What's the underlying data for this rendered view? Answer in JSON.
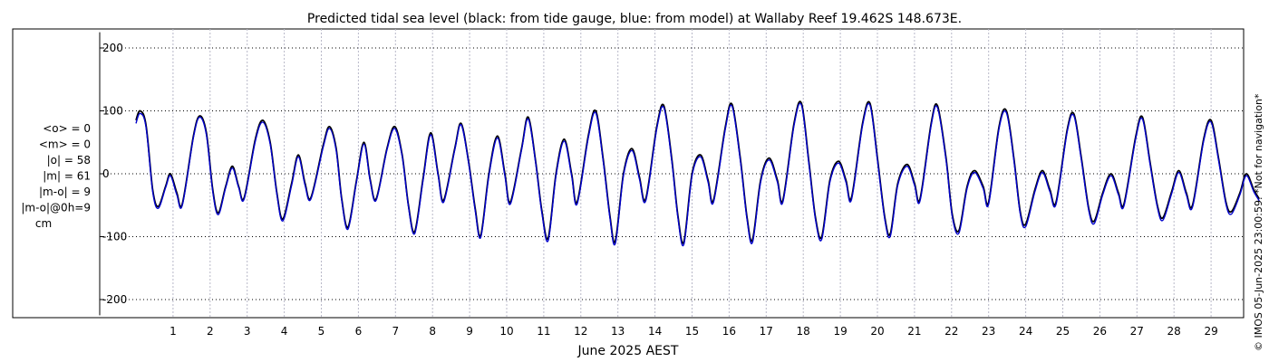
{
  "chart_data": {
    "type": "line",
    "title": "Predicted tidal sea level (black: from tide gauge, blue: from model) at Wallaby Reef 19.462S 148.673E.",
    "xlabel": "June 2025 AEST",
    "ylabel": "",
    "x_range_days": [
      0.0,
      30.3
    ],
    "ylim": [
      -225,
      225
    ],
    "x_ticks": [
      "1",
      "2",
      "3",
      "4",
      "5",
      "6",
      "7",
      "8",
      "9",
      "10",
      "11",
      "12",
      "13",
      "14",
      "15",
      "16",
      "17",
      "18",
      "19",
      "20",
      "21",
      "22",
      "23",
      "24",
      "25",
      "26",
      "27",
      "28",
      "29"
    ],
    "y_ticks": [
      {
        "value": 200,
        "label": "200"
      },
      {
        "value": 100,
        "label": "100"
      },
      {
        "value": 0,
        "label": "0"
      },
      {
        "value": -100,
        "label": "-100"
      },
      {
        "value": -200,
        "label": "-200"
      }
    ],
    "grid": true,
    "series": [
      {
        "label_in_title": "black: from tide gauge",
        "color": "#000000",
        "points": [
          [
            0.0,
            85
          ],
          [
            0.11,
            100
          ],
          [
            0.27,
            78
          ],
          [
            0.45,
            -25
          ],
          [
            0.6,
            -52
          ],
          [
            0.8,
            -20
          ],
          [
            0.93,
            0
          ],
          [
            1.1,
            -30
          ],
          [
            1.25,
            -48
          ],
          [
            1.55,
            60
          ],
          [
            1.72,
            92
          ],
          [
            1.9,
            65
          ],
          [
            2.07,
            -25
          ],
          [
            2.22,
            -62
          ],
          [
            2.42,
            -20
          ],
          [
            2.6,
            12
          ],
          [
            2.77,
            -20
          ],
          [
            2.92,
            -38
          ],
          [
            3.22,
            55
          ],
          [
            3.42,
            85
          ],
          [
            3.62,
            50
          ],
          [
            3.8,
            -30
          ],
          [
            3.96,
            -72
          ],
          [
            4.2,
            -15
          ],
          [
            4.38,
            30
          ],
          [
            4.56,
            -15
          ],
          [
            4.72,
            -38
          ],
          [
            5.05,
            45
          ],
          [
            5.22,
            75
          ],
          [
            5.4,
            40
          ],
          [
            5.55,
            -40
          ],
          [
            5.72,
            -85
          ],
          [
            5.95,
            -10
          ],
          [
            6.15,
            50
          ],
          [
            6.32,
            -10
          ],
          [
            6.48,
            -40
          ],
          [
            6.77,
            40
          ],
          [
            6.98,
            75
          ],
          [
            7.18,
            30
          ],
          [
            7.35,
            -50
          ],
          [
            7.52,
            -92
          ],
          [
            7.75,
            -5
          ],
          [
            7.95,
            65
          ],
          [
            8.15,
            0
          ],
          [
            8.3,
            -42
          ],
          [
            8.6,
            40
          ],
          [
            8.77,
            80
          ],
          [
            8.97,
            20
          ],
          [
            9.15,
            -55
          ],
          [
            9.3,
            -98
          ],
          [
            9.52,
            0
          ],
          [
            9.75,
            60
          ],
          [
            9.95,
            0
          ],
          [
            10.1,
            -45
          ],
          [
            10.4,
            40
          ],
          [
            10.58,
            90
          ],
          [
            10.78,
            20
          ],
          [
            10.95,
            -60
          ],
          [
            11.12,
            -102
          ],
          [
            11.33,
            0
          ],
          [
            11.55,
            55
          ],
          [
            11.75,
            0
          ],
          [
            11.9,
            -45
          ],
          [
            12.2,
            60
          ],
          [
            12.4,
            100
          ],
          [
            12.6,
            25
          ],
          [
            12.78,
            -65
          ],
          [
            12.93,
            -107
          ],
          [
            13.15,
            0
          ],
          [
            13.38,
            40
          ],
          [
            13.58,
            -5
          ],
          [
            13.75,
            -40
          ],
          [
            14.05,
            75
          ],
          [
            14.24,
            108
          ],
          [
            14.45,
            25
          ],
          [
            14.62,
            -68
          ],
          [
            14.78,
            -108
          ],
          [
            15.0,
            0
          ],
          [
            15.23,
            30
          ],
          [
            15.43,
            -10
          ],
          [
            15.58,
            -42
          ],
          [
            15.9,
            75
          ],
          [
            16.08,
            110
          ],
          [
            16.3,
            25
          ],
          [
            16.48,
            -68
          ],
          [
            16.63,
            -105
          ],
          [
            16.85,
            -10
          ],
          [
            17.08,
            25
          ],
          [
            17.3,
            -10
          ],
          [
            17.45,
            -42
          ],
          [
            17.75,
            80
          ],
          [
            17.95,
            112
          ],
          [
            18.15,
            20
          ],
          [
            18.33,
            -70
          ],
          [
            18.5,
            -100
          ],
          [
            18.72,
            -10
          ],
          [
            18.95,
            20
          ],
          [
            19.15,
            -10
          ],
          [
            19.3,
            -38
          ],
          [
            19.6,
            80
          ],
          [
            19.8,
            112
          ],
          [
            20.0,
            25
          ],
          [
            20.2,
            -70
          ],
          [
            20.35,
            -95
          ],
          [
            20.55,
            -15
          ],
          [
            20.8,
            15
          ],
          [
            21.0,
            -15
          ],
          [
            21.15,
            -40
          ],
          [
            21.45,
            80
          ],
          [
            21.62,
            108
          ],
          [
            21.85,
            25
          ],
          [
            22.02,
            -65
          ],
          [
            22.2,
            -90
          ],
          [
            22.42,
            -20
          ],
          [
            22.62,
            5
          ],
          [
            22.85,
            -20
          ],
          [
            23.0,
            -45
          ],
          [
            23.28,
            75
          ],
          [
            23.48,
            100
          ],
          [
            23.68,
            25
          ],
          [
            23.85,
            -60
          ],
          [
            24.0,
            -80
          ],
          [
            24.25,
            -25
          ],
          [
            24.45,
            5
          ],
          [
            24.65,
            -25
          ],
          [
            24.82,
            -45
          ],
          [
            25.12,
            70
          ],
          [
            25.3,
            95
          ],
          [
            25.5,
            25
          ],
          [
            25.7,
            -55
          ],
          [
            25.85,
            -75
          ],
          [
            26.08,
            -30
          ],
          [
            26.3,
            0
          ],
          [
            26.5,
            -30
          ],
          [
            26.65,
            -48
          ],
          [
            26.97,
            60
          ],
          [
            27.15,
            90
          ],
          [
            27.35,
            20
          ],
          [
            27.55,
            -50
          ],
          [
            27.7,
            -70
          ],
          [
            27.93,
            -30
          ],
          [
            28.13,
            5
          ],
          [
            28.33,
            -30
          ],
          [
            28.5,
            -50
          ],
          [
            28.8,
            55
          ],
          [
            29.0,
            85
          ],
          [
            29.2,
            25
          ],
          [
            29.4,
            -45
          ],
          [
            29.55,
            -60
          ],
          [
            29.78,
            -30
          ],
          [
            29.95,
            0
          ],
          [
            30.15,
            -25
          ],
          [
            30.3,
            -40
          ]
        ]
      },
      {
        "label_in_title": "blue: from model",
        "color": "#0000cc",
        "points": [
          [
            0.0,
            80
          ],
          [
            0.11,
            96
          ],
          [
            0.27,
            75
          ],
          [
            0.45,
            -28
          ],
          [
            0.6,
            -55
          ],
          [
            0.8,
            -22
          ],
          [
            0.93,
            -3
          ],
          [
            1.1,
            -33
          ],
          [
            1.25,
            -50
          ],
          [
            1.55,
            58
          ],
          [
            1.72,
            90
          ],
          [
            1.9,
            62
          ],
          [
            2.07,
            -28
          ],
          [
            2.22,
            -65
          ],
          [
            2.42,
            -22
          ],
          [
            2.6,
            9
          ],
          [
            2.77,
            -22
          ],
          [
            2.92,
            -40
          ],
          [
            3.22,
            52
          ],
          [
            3.42,
            82
          ],
          [
            3.62,
            47
          ],
          [
            3.8,
            -32
          ],
          [
            3.96,
            -75
          ],
          [
            4.2,
            -18
          ],
          [
            4.38,
            27
          ],
          [
            4.56,
            -18
          ],
          [
            4.72,
            -40
          ],
          [
            5.05,
            42
          ],
          [
            5.22,
            72
          ],
          [
            5.4,
            37
          ],
          [
            5.55,
            -42
          ],
          [
            5.72,
            -88
          ],
          [
            5.95,
            -12
          ],
          [
            6.15,
            47
          ],
          [
            6.32,
            -12
          ],
          [
            6.48,
            -42
          ],
          [
            6.77,
            38
          ],
          [
            6.98,
            72
          ],
          [
            7.18,
            28
          ],
          [
            7.35,
            -52
          ],
          [
            7.52,
            -95
          ],
          [
            7.75,
            -8
          ],
          [
            7.95,
            62
          ],
          [
            8.15,
            -2
          ],
          [
            8.3,
            -45
          ],
          [
            8.6,
            38
          ],
          [
            8.77,
            78
          ],
          [
            8.97,
            18
          ],
          [
            9.15,
            -58
          ],
          [
            9.3,
            -101
          ],
          [
            9.52,
            -3
          ],
          [
            9.75,
            57
          ],
          [
            9.95,
            -3
          ],
          [
            10.1,
            -48
          ],
          [
            10.4,
            38
          ],
          [
            10.58,
            87
          ],
          [
            10.78,
            18
          ],
          [
            10.95,
            -63
          ],
          [
            11.12,
            -106
          ],
          [
            11.33,
            -3
          ],
          [
            11.55,
            52
          ],
          [
            11.75,
            -3
          ],
          [
            11.9,
            -48
          ],
          [
            12.2,
            57
          ],
          [
            12.4,
            97
          ],
          [
            12.6,
            22
          ],
          [
            12.78,
            -68
          ],
          [
            12.93,
            -111
          ],
          [
            13.15,
            -3
          ],
          [
            13.38,
            37
          ],
          [
            13.58,
            -8
          ],
          [
            13.75,
            -43
          ],
          [
            14.05,
            72
          ],
          [
            14.24,
            105
          ],
          [
            14.45,
            22
          ],
          [
            14.62,
            -71
          ],
          [
            14.78,
            -112
          ],
          [
            15.0,
            -3
          ],
          [
            15.23,
            27
          ],
          [
            15.43,
            -13
          ],
          [
            15.58,
            -45
          ],
          [
            15.9,
            72
          ],
          [
            16.08,
            107
          ],
          [
            16.3,
            22
          ],
          [
            16.48,
            -71
          ],
          [
            16.63,
            -109
          ],
          [
            16.85,
            -13
          ],
          [
            17.08,
            22
          ],
          [
            17.3,
            -13
          ],
          [
            17.45,
            -45
          ],
          [
            17.75,
            77
          ],
          [
            17.95,
            109
          ],
          [
            18.15,
            17
          ],
          [
            18.33,
            -73
          ],
          [
            18.5,
            -104
          ],
          [
            18.72,
            -13
          ],
          [
            18.95,
            17
          ],
          [
            19.15,
            -13
          ],
          [
            19.3,
            -41
          ],
          [
            19.6,
            77
          ],
          [
            19.8,
            109
          ],
          [
            20.0,
            22
          ],
          [
            20.2,
            -73
          ],
          [
            20.35,
            -99
          ],
          [
            20.55,
            -18
          ],
          [
            20.8,
            12
          ],
          [
            21.0,
            -18
          ],
          [
            21.15,
            -43
          ],
          [
            21.45,
            77
          ],
          [
            21.62,
            105
          ],
          [
            21.85,
            22
          ],
          [
            22.02,
            -68
          ],
          [
            22.2,
            -94
          ],
          [
            22.42,
            -23
          ],
          [
            22.62,
            2
          ],
          [
            22.85,
            -23
          ],
          [
            23.0,
            -48
          ],
          [
            23.28,
            72
          ],
          [
            23.48,
            97
          ],
          [
            23.68,
            22
          ],
          [
            23.85,
            -63
          ],
          [
            24.0,
            -84
          ],
          [
            24.25,
            -28
          ],
          [
            24.45,
            2
          ],
          [
            24.65,
            -28
          ],
          [
            24.82,
            -48
          ],
          [
            25.12,
            67
          ],
          [
            25.3,
            92
          ],
          [
            25.5,
            22
          ],
          [
            25.7,
            -58
          ],
          [
            25.85,
            -79
          ],
          [
            26.08,
            -33
          ],
          [
            26.3,
            -3
          ],
          [
            26.5,
            -33
          ],
          [
            26.65,
            -51
          ],
          [
            26.97,
            57
          ],
          [
            27.15,
            87
          ],
          [
            27.35,
            17
          ],
          [
            27.55,
            -53
          ],
          [
            27.7,
            -74
          ],
          [
            27.93,
            -33
          ],
          [
            28.13,
            2
          ],
          [
            28.33,
            -33
          ],
          [
            28.5,
            -53
          ],
          [
            28.8,
            52
          ],
          [
            29.0,
            82
          ],
          [
            29.2,
            22
          ],
          [
            29.4,
            -48
          ],
          [
            29.55,
            -64
          ],
          [
            29.78,
            -33
          ],
          [
            29.95,
            -3
          ],
          [
            30.15,
            -28
          ],
          [
            30.3,
            -43
          ]
        ]
      }
    ],
    "stats_lines": [
      "<o> = 0",
      "<m> = 0",
      "|o| = 58",
      "|m| = 61",
      "|m-o| = 9",
      "|m-o|@0h=9",
      "cm"
    ],
    "side_note": "© IMOS 05-Jun-2025 23:00:59. *Not for navigation*"
  }
}
